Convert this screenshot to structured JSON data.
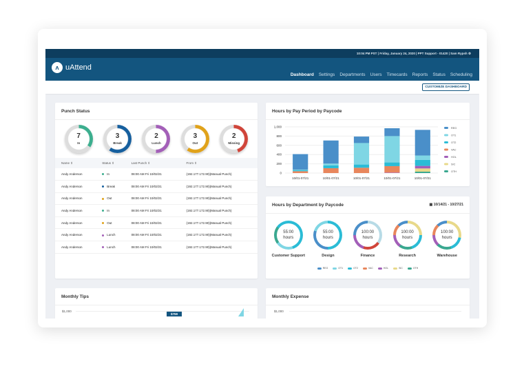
{
  "topbar": {
    "info": "10:04 PM PST | Friday, January 24, 2020 | PPT Support - 01420 | Sam Rypsh",
    "icon": "settings-icon"
  },
  "brand": {
    "name": "uAttend"
  },
  "nav": [
    {
      "label": "Dashboard",
      "active": true
    },
    {
      "label": "Settings"
    },
    {
      "label": "Departments"
    },
    {
      "label": "Users"
    },
    {
      "label": "Timecards"
    },
    {
      "label": "Reports"
    },
    {
      "label": "Status"
    },
    {
      "label": "Scheduling"
    }
  ],
  "customize_label": "CUSTOMIZE DASHBOARD",
  "punch": {
    "title": "Punch Status",
    "rings": [
      {
        "count": "7",
        "label": "In",
        "color": "#3cae8e",
        "fraction": 0.35
      },
      {
        "count": "3",
        "label": "Break",
        "color": "#165f9e",
        "fraction": 0.6
      },
      {
        "count": "2",
        "label": "Lunch",
        "color": "#a35fb8",
        "fraction": 0.5
      },
      {
        "count": "3",
        "label": "Out",
        "color": "#e0a21a",
        "fraction": 0.6
      },
      {
        "count": "2",
        "label": "Missing",
        "color": "#d0453a",
        "fraction": 0.45
      }
    ],
    "columns": [
      "Name",
      "Status",
      "Last Punch",
      "From"
    ],
    "rows": [
      {
        "name": "Andy Anderson",
        "status": "In",
        "color": "#3cae8e",
        "last": "08:00 AM Fri 10/02/21",
        "from": "(192.177.172.90)(Manual Punch)"
      },
      {
        "name": "Andy Anderson",
        "status": "Break",
        "color": "#165f9e",
        "last": "08:00 AM Fri 10/02/21",
        "from": "(192.177.172.90)(Manual Punch)"
      },
      {
        "name": "Andy Anderson",
        "status": "Out",
        "color": "#e0a21a",
        "last": "08:00 AM Fri 10/02/21",
        "from": "(192.177.172.90)(Manual Punch)"
      },
      {
        "name": "Andy Anderson",
        "status": "In",
        "color": "#3cae8e",
        "last": "08:00 AM Fri 10/02/21",
        "from": "(192.177.172.90)(Manual Punch)"
      },
      {
        "name": "Andy Anderson",
        "status": "Out",
        "color": "#e0a21a",
        "last": "08:00 AM Fri 10/02/21",
        "from": "(192.177.172.90)(Manual Punch)"
      },
      {
        "name": "Andy Anderson",
        "status": "Lunch",
        "color": "#a35fb8",
        "last": "08:00 AM Fri 10/02/21",
        "from": "(192.177.172.90)(Manual Punch)"
      },
      {
        "name": "Andy Anderson",
        "status": "Lunch",
        "color": "#a35fb8",
        "last": "08:00 AM Fri 10/02/21",
        "from": "(192.177.172.90)(Manual Punch)"
      }
    ]
  },
  "chart_data": {
    "type": "bar",
    "stacked": true,
    "title": "Hours by Pay Period by Paycode",
    "categories": [
      "10/01-07/21",
      "10/01-07/21",
      "10/01-07/21",
      "10/01-07/21",
      "10/01-07/21"
    ],
    "ylim": [
      0,
      1000
    ],
    "yticks": [
      "0",
      "200",
      "400",
      "600",
      "800",
      "1,000"
    ],
    "legend": "right",
    "series": [
      {
        "name": "REG",
        "color": "#4a8fc9",
        "values": [
          335,
          500,
          140,
          170,
          555
        ]
      },
      {
        "name": "OT1",
        "color": "#7fd6e4",
        "values": [
          15,
          40,
          465,
          570,
          95
        ]
      },
      {
        "name": "OT2",
        "color": "#2bbcd6",
        "values": [
          20,
          60,
          70,
          80,
          130
        ]
      },
      {
        "name": "VAC",
        "color": "#e8865c",
        "values": [
          40,
          105,
          115,
          140,
          0
        ]
      },
      {
        "name": "HOL",
        "color": "#a35fb8",
        "values": [
          0,
          0,
          0,
          10,
          55
        ]
      },
      {
        "name": "SIC",
        "color": "#e8d98a",
        "values": [
          0,
          0,
          0,
          0,
          70
        ]
      },
      {
        "name": "OTH",
        "color": "#3aa890",
        "values": [
          0,
          0,
          0,
          0,
          30
        ]
      }
    ]
  },
  "dept": {
    "title": "Hours by Department by Paycode",
    "date_range": "10/14/21 - 10/27/21",
    "calendar_icon": "calendar-icon",
    "items": [
      {
        "name": "Customer Support",
        "value": "55:00",
        "unit": "hours",
        "gradient": "#2bbcd6 0 45%,#7fd6e4 45% 65%,#3aa890 65% 85%,#2bbcd6 85%"
      },
      {
        "name": "Design",
        "value": "55:00",
        "unit": "hours",
        "gradient": "#2bbcd6 0 50%,#4a8fc9 50% 80%,#7fd6e4 80%"
      },
      {
        "name": "Finance",
        "value": "100:00",
        "unit": "hours",
        "gradient": "#b7dbe6 0 35%,#d0453a 35% 55%,#a35fb8 55% 75%,#4a8fc9 75%"
      },
      {
        "name": "Research",
        "value": "100:00",
        "unit": "hours",
        "gradient": "#e8d98a 0 25%,#2bbcd6 25% 45%,#3aa890 45% 60%,#a35fb8 60% 75%,#e8865c 75% 88%,#4a8fc9 88%"
      },
      {
        "name": "Warehouse",
        "value": "100:00",
        "unit": "hours",
        "gradient": "#e8d98a 0 28%,#2bbcd6 28% 45%,#3aa890 45% 62%,#a35fb8 62% 75%,#e8865c 75% 88%,#4a8fc9 88%"
      }
    ],
    "legend": [
      {
        "name": "REG",
        "color": "#4a8fc9"
      },
      {
        "name": "OT1",
        "color": "#7fd6e4"
      },
      {
        "name": "OT2",
        "color": "#2bbcd6"
      },
      {
        "name": "VAC",
        "color": "#e8865c"
      },
      {
        "name": "HOL",
        "color": "#a35fb8"
      },
      {
        "name": "SIC",
        "color": "#e8d98a"
      },
      {
        "name": "OTH",
        "color": "#3aa890"
      }
    ]
  },
  "tips": {
    "title": "Monthly Tips",
    "ytick": "$1,000",
    "tooltip": "$759"
  },
  "expense": {
    "title": "Monthly Expense",
    "ytick": "$1,000"
  }
}
